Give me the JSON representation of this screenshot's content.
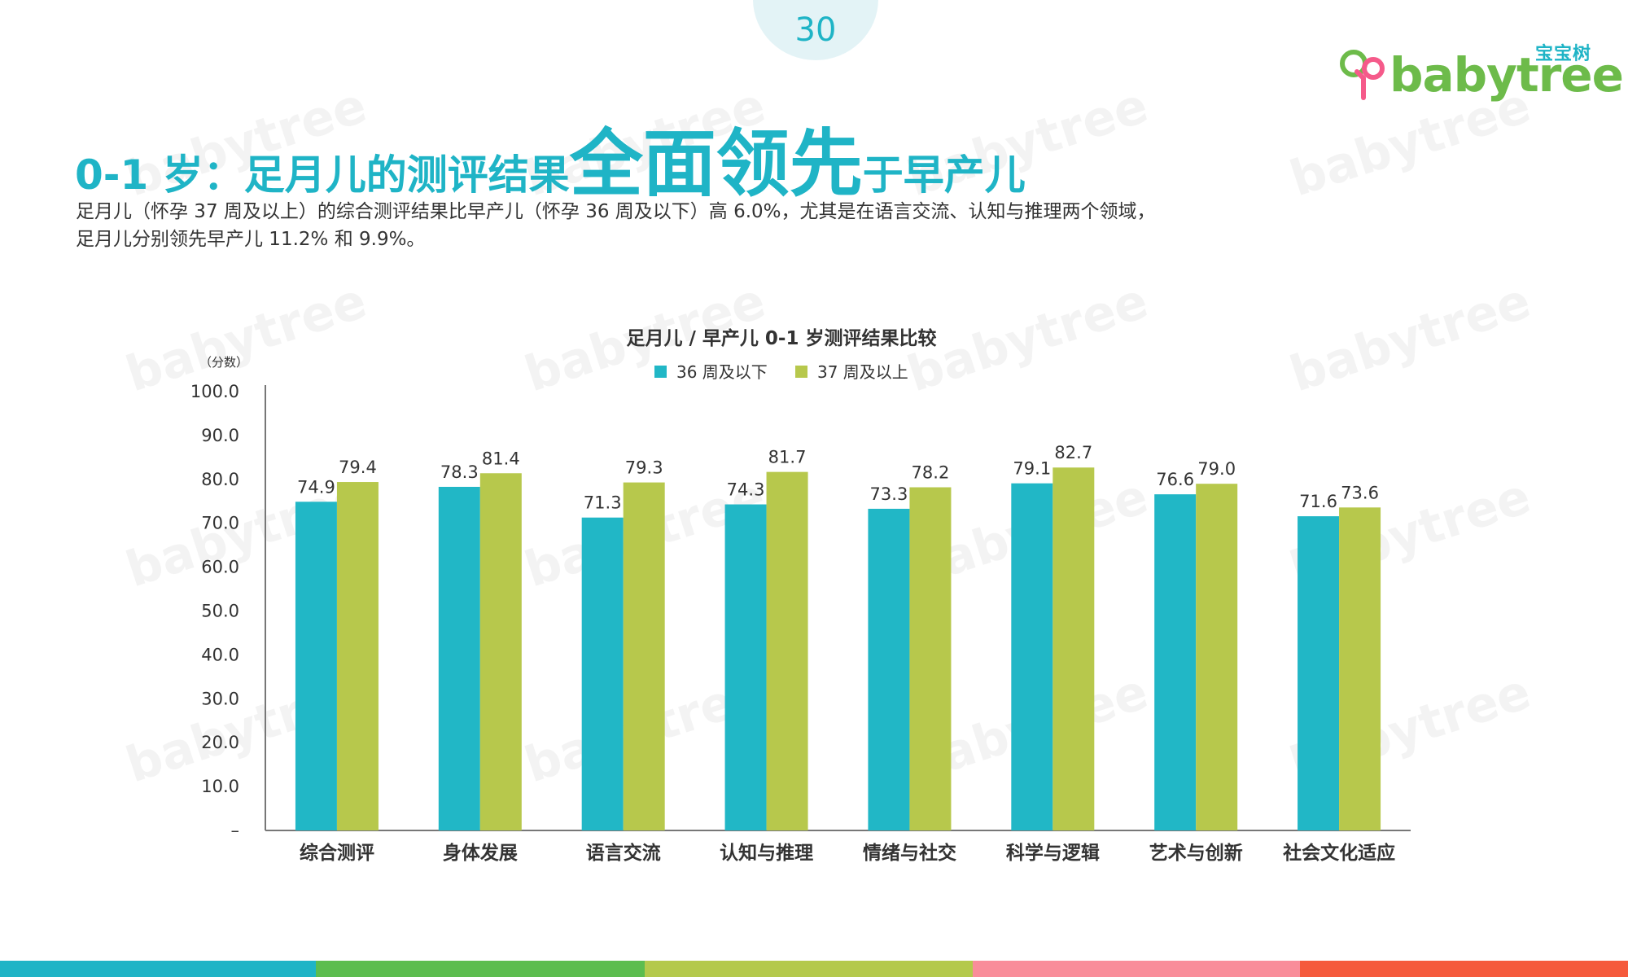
{
  "page_number": "30",
  "logo": {
    "cn": "宝宝树",
    "en": "babytree",
    "icon": "babytree-logo-icon"
  },
  "watermark": "babytree",
  "title": {
    "part1": "0-1 岁：足月儿的测评结果",
    "part2": "全面领先",
    "part3": "于早产儿"
  },
  "description": "足月儿（怀孕 37 周及以上）的综合测评结果比早产儿（怀孕 36 周及以下）高 6.0%，尤其是在语言交流、认知与推理两个领域，足月儿分别领先早产儿 11.2% 和 9.9%。",
  "bottom_bar_colors": [
    "#1fb4c6",
    "#5cbd4f",
    "#b4c94c",
    "#f98d9a",
    "#f55a3c"
  ],
  "chart_data": {
    "type": "bar",
    "title": "足月儿 / 早产儿 0-1 岁测评结果比较",
    "ylabel": "（分数）",
    "ylim": [
      0,
      100
    ],
    "yticks": [
      "–",
      "10.0",
      "20.0",
      "30.0",
      "40.0",
      "50.0",
      "60.0",
      "70.0",
      "80.0",
      "90.0",
      "100.0"
    ],
    "categories": [
      "综合测评",
      "身体发展",
      "语言交流",
      "认知与推理",
      "情绪与社交",
      "科学与逻辑",
      "艺术与创新",
      "社会文化适应"
    ],
    "series": [
      {
        "name": "36 周及以下",
        "color": "#21b7c6",
        "values": [
          74.9,
          78.3,
          71.3,
          74.3,
          73.3,
          79.1,
          76.6,
          71.6
        ],
        "labels": [
          "74.9",
          "78.3",
          "71.3",
          "74.3",
          "73.3",
          "79.1",
          "76.6",
          "71.6"
        ]
      },
      {
        "name": "37 周及以上",
        "color": "#b7c84c",
        "values": [
          79.4,
          81.4,
          79.3,
          81.7,
          78.2,
          82.7,
          79.0,
          73.6
        ],
        "labels": [
          "79.4",
          "81.4",
          "79.3",
          "81.7",
          "78.2",
          "82.7",
          "79.0",
          "73.6"
        ]
      }
    ],
    "legend": "top-center",
    "grid": false
  }
}
